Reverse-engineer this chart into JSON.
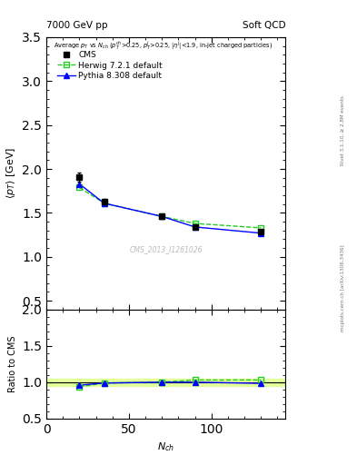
{
  "title_left": "7000 GeV pp",
  "title_right": "Soft QCD",
  "watermark": "CMS_2013_I1261026",
  "right_label_top": "Rivet 3.1.10, ≥ 2.8M events",
  "right_label_bot": "mcplots.cern.ch [arXiv:1306.3436]",
  "ylabel_main": "$\\langle p_T \\rangle$ [GeV]",
  "ylabel_ratio": "Ratio to CMS",
  "xlabel": "$N_{ch}$",
  "ylim_main": [
    0.4,
    3.5
  ],
  "ylim_ratio": [
    0.5,
    2.0
  ],
  "yticks_main": [
    0.5,
    1.0,
    1.5,
    2.0,
    2.5,
    3.0,
    3.5
  ],
  "yticks_ratio": [
    0.5,
    1.0,
    1.5,
    2.0
  ],
  "xlim": [
    0,
    145
  ],
  "xticks": [
    0,
    50,
    100
  ],
  "cms_x": [
    20,
    35,
    70,
    90,
    130
  ],
  "cms_y": [
    1.91,
    1.63,
    1.46,
    1.34,
    1.29
  ],
  "cms_yerr": [
    0.05,
    0.03,
    0.02,
    0.02,
    0.02
  ],
  "herwig_x": [
    20,
    35,
    70,
    90,
    130
  ],
  "herwig_y": [
    1.79,
    1.61,
    1.46,
    1.38,
    1.33
  ],
  "pythia_x": [
    20,
    35,
    70,
    90,
    130
  ],
  "pythia_y": [
    1.83,
    1.61,
    1.46,
    1.34,
    1.27
  ],
  "herwig_ratio": [
    0.937,
    0.988,
    1.0,
    1.03,
    1.031
  ],
  "pythia_ratio": [
    0.958,
    0.988,
    1.0,
    1.0,
    0.984
  ],
  "cms_color": "black",
  "herwig_color": "#22cc22",
  "pythia_color": "blue",
  "ref_band_color": "#ddff88",
  "background_color": "white",
  "legend_labels": [
    "CMS",
    "Herwig 7.2.1 default",
    "Pythia 8.308 default"
  ]
}
